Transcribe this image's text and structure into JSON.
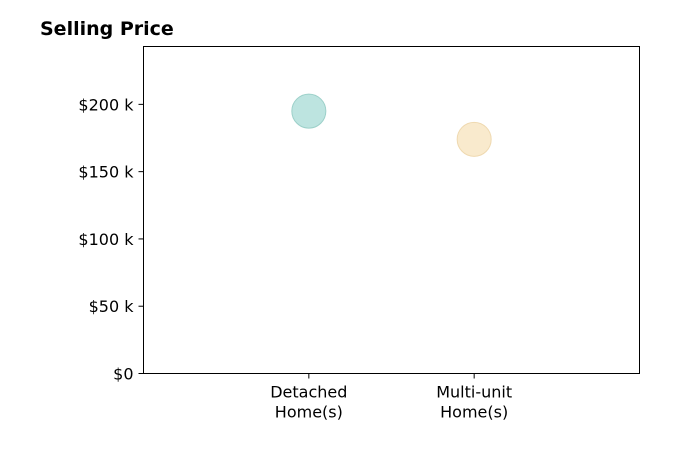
{
  "chart_data": {
    "type": "scatter",
    "title": "Selling Price",
    "categories": [
      [
        "Detached",
        "Home(s)"
      ],
      [
        "Multi-unit",
        "Home(s)"
      ]
    ],
    "values": [
      195000,
      174000
    ],
    "point_colors": [
      "#b2dfda",
      "#f8e6c4"
    ],
    "point_stroke_colors": [
      "#9cd0c9",
      "#efd9b0"
    ],
    "yticks": [
      0,
      50000,
      100000,
      150000,
      200000
    ],
    "ytick_labels": [
      "$0",
      "$50 k",
      "$100 k",
      "$150 k",
      "$200 k"
    ],
    "ylim": [
      0,
      243000
    ],
    "xlim": [
      -1,
      2
    ],
    "grid": false,
    "legend": "none"
  }
}
